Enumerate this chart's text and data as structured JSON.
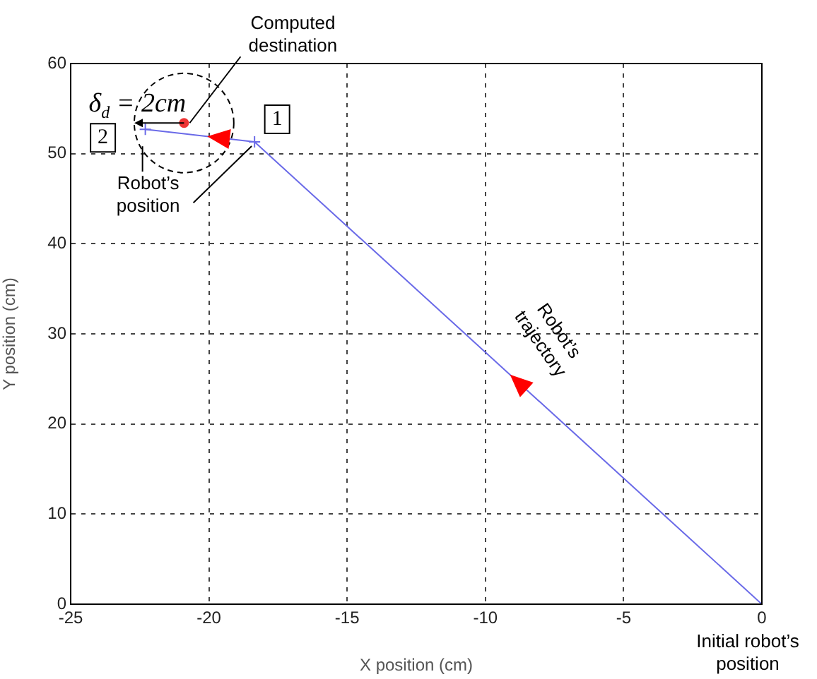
{
  "chart_data": {
    "type": "line",
    "xlabel": "X position (cm)",
    "ylabel": "Y position (cm)",
    "xlim": [
      -25,
      0
    ],
    "xticks": [
      -25,
      -20,
      -15,
      -10,
      -5,
      0
    ],
    "ylim": [
      0,
      60
    ],
    "yticks": [
      0,
      10,
      20,
      30,
      40,
      50,
      60
    ],
    "grid": true,
    "legend": false,
    "series": [
      {
        "color": "#6a6ae8",
        "marker": "cross",
        "line_style": "solid",
        "x": [
          0,
          -18.35,
          -22.3
        ],
        "values": [
          0,
          51.3,
          52.7
        ]
      },
      {
        "type": "scatter",
        "color": "#ee3333",
        "marker": "circle",
        "x": [
          -20.9
        ],
        "values": [
          53.4
        ]
      }
    ],
    "annotations": [
      {
        "text": "Computed destination",
        "x": -20.9,
        "y": 53.4
      },
      {
        "text": "1",
        "x": -18.35,
        "y": 51.3
      },
      {
        "text": "2",
        "x": -22.3,
        "y": 52.7
      },
      {
        "text": "Robot’s position",
        "x": -22.3,
        "y": 52.7
      },
      {
        "text": "Robot’s trajectory",
        "x": -10,
        "y": 28
      },
      {
        "text": "Initial robot’s position",
        "x": 0,
        "y": 0
      },
      {
        "text": "δ$_{d}$ = 2cm",
        "x": -20.9,
        "y": 53.4
      }
    ]
  }
}
